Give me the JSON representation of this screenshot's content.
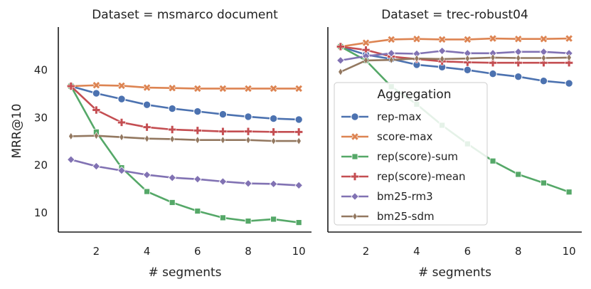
{
  "chart_data": {
    "type": "line",
    "ylabel": "MRR@10",
    "xlabel": "# segments",
    "x": [
      1,
      2,
      3,
      4,
      5,
      6,
      7,
      8,
      9,
      10
    ],
    "xticks": [
      2,
      4,
      6,
      8,
      10
    ],
    "xlim": [
      0.5,
      10.5
    ],
    "yticks": [
      10,
      20,
      30,
      40
    ],
    "ylim": [
      6,
      49
    ],
    "legend": {
      "title": "Aggregation",
      "location": "right-center",
      "entries": [
        "rep-max",
        "score-max",
        "rep(score)-sum",
        "rep(score)-mean",
        "bm25-rm3",
        "bm25-sdm"
      ]
    },
    "styles": [
      {
        "name": "rep-max",
        "color": "#4c72b0",
        "marker": "circle"
      },
      {
        "name": "score-max",
        "color": "#dd8452",
        "marker": "x"
      },
      {
        "name": "rep(score)-sum",
        "color": "#55a868",
        "marker": "square"
      },
      {
        "name": "rep(score)-mean",
        "color": "#c44e52",
        "marker": "plus"
      },
      {
        "name": "bm25-rm3",
        "color": "#8172b3",
        "marker": "diamond"
      },
      {
        "name": "bm25-sdm",
        "color": "#937860",
        "marker": "thin_diamond"
      }
    ],
    "panels": [
      {
        "title": "Dataset = msmarco document",
        "series": [
          {
            "name": "rep-max",
            "values": [
              36.6,
              35.1,
              33.9,
              32.7,
              31.9,
              31.3,
              30.7,
              30.2,
              29.8,
              29.6
            ]
          },
          {
            "name": "score-max",
            "values": [
              36.6,
              36.8,
              36.7,
              36.3,
              36.2,
              36.1,
              36.1,
              36.1,
              36.1,
              36.1
            ]
          },
          {
            "name": "rep(score)-sum",
            "values": [
              36.6,
              27.0,
              19.5,
              14.5,
              12.2,
              10.4,
              9.0,
              8.3,
              8.7,
              8.0
            ]
          },
          {
            "name": "rep(score)-mean",
            "values": [
              36.6,
              31.6,
              29.0,
              28.0,
              27.5,
              27.3,
              27.1,
              27.1,
              27.0,
              27.0
            ]
          },
          {
            "name": "bm25-rm3",
            "values": [
              21.2,
              19.8,
              18.9,
              18.0,
              17.4,
              17.1,
              16.6,
              16.2,
              16.1,
              15.8
            ]
          },
          {
            "name": "bm25-sdm",
            "values": [
              26.1,
              26.2,
              25.9,
              25.6,
              25.5,
              25.3,
              25.3,
              25.3,
              25.1,
              25.1
            ]
          }
        ]
      },
      {
        "title": "Dataset = trec-robust04",
        "series": [
          {
            "name": "rep-max",
            "values": [
              44.9,
              43.2,
              42.3,
              41.1,
              40.6,
              40.0,
              39.2,
              38.6,
              37.7,
              37.2
            ]
          },
          {
            "name": "score-max",
            "values": [
              44.9,
              45.7,
              46.4,
              46.5,
              46.4,
              46.4,
              46.6,
              46.5,
              46.5,
              46.6
            ]
          },
          {
            "name": "rep(score)-sum",
            "values": [
              44.9,
              42.0,
              36.5,
              32.8,
              28.4,
              24.5,
              20.9,
              18.1,
              16.3,
              14.4
            ]
          },
          {
            "name": "rep(score)-mean",
            "values": [
              44.9,
              44.2,
              42.8,
              42.3,
              41.8,
              41.6,
              41.5,
              41.5,
              41.5,
              41.5
            ]
          },
          {
            "name": "bm25-rm3",
            "values": [
              42.0,
              42.9,
              43.5,
              43.4,
              44.0,
              43.5,
              43.5,
              43.8,
              43.8,
              43.5
            ]
          },
          {
            "name": "bm25-sdm",
            "values": [
              39.6,
              42.0,
              42.1,
              42.4,
              42.3,
              42.4,
              42.6,
              42.5,
              42.5,
              42.6
            ]
          }
        ]
      }
    ]
  }
}
